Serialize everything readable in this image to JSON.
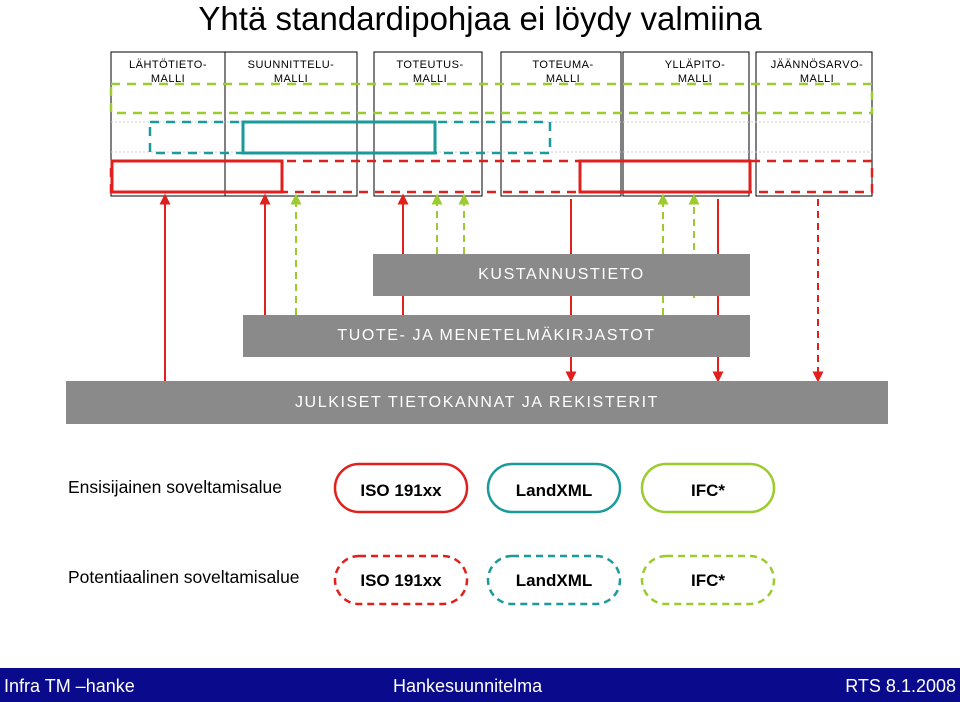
{
  "title": "Yhtä standardipohjaa ei löydy valmiina",
  "columns": [
    {
      "label": "LÄHTÖTIETO-\nMALLI"
    },
    {
      "label": "SUUNNITTELU-\nMALLI"
    },
    {
      "label": "TOTEUTUS-\nMALLI"
    },
    {
      "label": "TOTEUMA-\nMALLI"
    },
    {
      "label": "YLLÄPITO-\nMALLI"
    },
    {
      "label": "JÄÄNNÖSARVO-\nMALLI"
    }
  ],
  "bars": {
    "cost": "KUSTANNUSTIETO",
    "product": "TUOTE- JA MENETELMÄKIRJASTOT",
    "public": "JULKISET TIETOKANNAT JA REKISTERIT"
  },
  "legend": {
    "primary_label": "Ensisijainen soveltamisalue",
    "potential_label": "Potentiaalinen soveltamisalue",
    "standards": [
      {
        "name": "ISO 191xx",
        "color": "#e0201c"
      },
      {
        "name": "LandXML",
        "color": "#1a9a9a"
      },
      {
        "name": "IFC*",
        "color": "#9bcb2c"
      }
    ]
  },
  "colors": {
    "red": "#e0201c",
    "teal": "#1a9a9a",
    "green": "#9bcb2c",
    "gray_bar": "#8a8a8a",
    "footer": "#0a0a8c"
  },
  "footer": {
    "left": "Infra TM –hanke",
    "center": "Hankesuunnitelma",
    "right": "RTS  8.1.2008"
  }
}
